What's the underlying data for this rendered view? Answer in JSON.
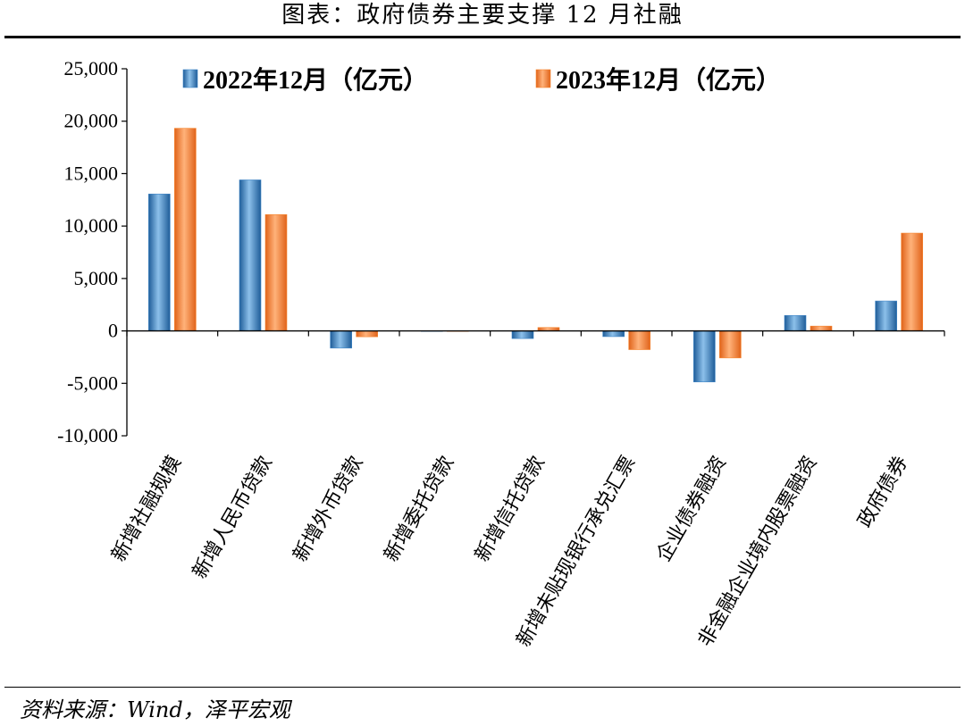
{
  "header": {
    "title": "图表：政府债券主要支撑 12 月社融"
  },
  "footer": {
    "source": "资料来源：Wind，泽平宏观"
  },
  "colors": {
    "s2022": "#3d84c6",
    "s2023": "#f7862e"
  },
  "chart_data": {
    "type": "bar",
    "categories": [
      "新增社融规模",
      "新增人民币贷款",
      "新增外币贷款",
      "新增委托贷款",
      "新增信托贷款",
      "新增未贴现银行承兑汇票",
      "企业债券融资",
      "非金融企业境内股票融资",
      "政府债券"
    ],
    "series": [
      {
        "name": "2022年12月（亿元）",
        "values": [
          13058,
          14401,
          -1638,
          -10,
          -727,
          -542,
          -4867,
          1475,
          2853
        ]
      },
      {
        "name": "2023年12月（亿元）",
        "values": [
          19326,
          11092,
          -559,
          -20,
          326,
          -1784,
          -2577,
          459,
          9326
        ]
      }
    ],
    "ylim": [
      -10000,
      25000
    ],
    "yticks": [
      "25,000",
      "20,000",
      "15,000",
      "10,000",
      "5,000",
      "0",
      "-5,000",
      "-10,000"
    ],
    "ytick_values": [
      25000,
      20000,
      15000,
      10000,
      5000,
      0,
      -5000,
      -10000
    ],
    "legend_position": "top"
  }
}
